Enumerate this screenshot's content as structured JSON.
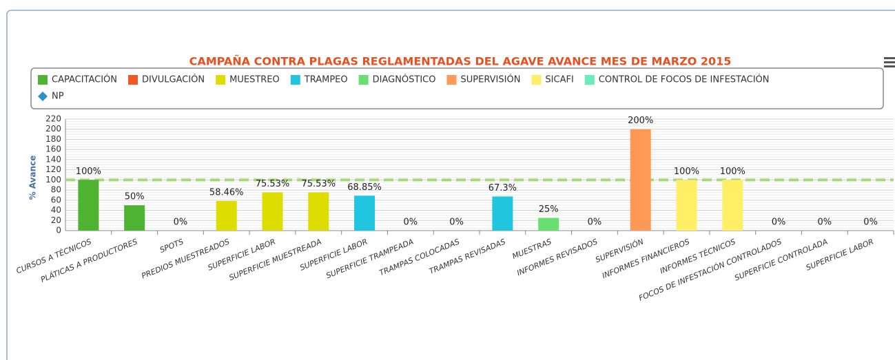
{
  "chart_data": {
    "type": "bar",
    "title": "CAMPAÑA CONTRA PLAGAS REGLAMENTADAS DEL AGAVE AVANCE MES DE MARZO 2015",
    "y_axis_label": "% Avance",
    "categories": [
      "CURSOS A TÉCNICOS",
      "PLÁTICAS A PRODUCTORES",
      "SPOTS",
      "PREDIOS MUESTREADOS",
      "SUPERFICIE LABOR",
      "SUPERFICIE MUESTREADA",
      "SUPERFICIE LABOR",
      "SUPERFICIE TRAMPEADA",
      "TRAMPAS COLOCADAS",
      "TRAMPAS REVISADAS",
      "MUESTRAS",
      "INFORMES REVISADOS",
      "SUPERVISIÓN",
      "INFORMES FINANCIEROS",
      "INFORMES TÉCNICOS",
      "FOCOS DE INFESTACIÓN CONTROLADOS",
      "SUPERFICIE CONTROLADA",
      "SUPERFICIE LABOR"
    ],
    "series": [
      {
        "name": "CAPACITACIÓN",
        "color": "#4db330",
        "values": [
          100,
          50,
          null,
          null,
          null,
          null,
          null,
          null,
          null,
          null,
          null,
          null,
          null,
          null,
          null,
          null,
          null,
          null
        ],
        "value_labels": [
          "100%",
          "50%",
          null,
          null,
          null,
          null,
          null,
          null,
          null,
          null,
          null,
          null,
          null,
          null,
          null,
          null,
          null,
          null
        ]
      },
      {
        "name": "DIVULGACIÓN",
        "color": "#f05a22",
        "values": [
          null,
          null,
          0,
          null,
          null,
          null,
          null,
          null,
          null,
          null,
          null,
          null,
          null,
          null,
          null,
          null,
          null,
          null
        ],
        "value_labels": [
          null,
          null,
          "0%",
          null,
          null,
          null,
          null,
          null,
          null,
          null,
          null,
          null,
          null,
          null,
          null,
          null,
          null,
          null
        ]
      },
      {
        "name": "MUESTREO",
        "color": "#dddd00",
        "values": [
          null,
          null,
          null,
          58.46,
          75.53,
          75.53,
          null,
          null,
          null,
          null,
          null,
          null,
          null,
          null,
          null,
          null,
          null,
          null
        ],
        "value_labels": [
          null,
          null,
          null,
          "58.46%",
          "75.53%",
          "75.53%",
          null,
          null,
          null,
          null,
          null,
          null,
          null,
          null,
          null,
          null,
          null,
          null
        ]
      },
      {
        "name": "TRAMPEO",
        "color": "#22c5e0",
        "values": [
          null,
          null,
          null,
          null,
          null,
          null,
          68.85,
          0,
          0,
          67.3,
          null,
          null,
          null,
          null,
          null,
          null,
          null,
          null
        ],
        "value_labels": [
          null,
          null,
          null,
          null,
          null,
          null,
          "68.85%",
          "0%",
          "0%",
          "67.3%",
          null,
          null,
          null,
          null,
          null,
          null,
          null,
          null
        ]
      },
      {
        "name": "DIAGNÓSTICO",
        "color": "#66e070",
        "values": [
          null,
          null,
          null,
          null,
          null,
          null,
          null,
          null,
          null,
          null,
          25,
          0,
          null,
          null,
          null,
          null,
          null,
          null
        ],
        "value_labels": [
          null,
          null,
          null,
          null,
          null,
          null,
          null,
          null,
          null,
          null,
          "25%",
          "0%",
          null,
          null,
          null,
          null,
          null,
          null
        ]
      },
      {
        "name": "SUPERVISIÓN",
        "color": "#ff9955",
        "values": [
          null,
          null,
          null,
          null,
          null,
          null,
          null,
          null,
          null,
          null,
          null,
          null,
          200,
          null,
          null,
          null,
          null,
          null
        ],
        "value_labels": [
          null,
          null,
          null,
          null,
          null,
          null,
          null,
          null,
          null,
          null,
          null,
          null,
          "200%",
          null,
          null,
          null,
          null,
          null
        ]
      },
      {
        "name": "SICAFI",
        "color": "#ffee66",
        "values": [
          null,
          null,
          null,
          null,
          null,
          null,
          null,
          null,
          null,
          null,
          null,
          null,
          null,
          100,
          100,
          null,
          null,
          null
        ],
        "value_labels": [
          null,
          null,
          null,
          null,
          null,
          null,
          null,
          null,
          null,
          null,
          null,
          null,
          null,
          "100%",
          "100%",
          null,
          null,
          null
        ]
      },
      {
        "name": "CONTROL DE FOCOS DE INFESTACIÓN",
        "color": "#66eebb",
        "values": [
          null,
          null,
          null,
          null,
          null,
          null,
          null,
          null,
          null,
          null,
          null,
          null,
          null,
          null,
          null,
          0,
          0,
          0
        ],
        "value_labels": [
          null,
          null,
          null,
          null,
          null,
          null,
          null,
          null,
          null,
          null,
          null,
          null,
          null,
          null,
          null,
          "0%",
          "0%",
          "0%"
        ]
      },
      {
        "name": "NP",
        "color": "#2b8fcc",
        "marker": "diamond",
        "values": [
          null,
          null,
          null,
          null,
          null,
          null,
          null,
          null,
          null,
          null,
          null,
          null,
          null,
          null,
          null,
          null,
          null,
          null
        ]
      }
    ],
    "plot_lines": [
      {
        "value": 100,
        "color": "#a6d878"
      }
    ],
    "ylim": [
      0,
      220
    ],
    "yticks": [
      0,
      20,
      40,
      60,
      80,
      100,
      120,
      140,
      160,
      180,
      200,
      220
    ],
    "grid": true
  }
}
